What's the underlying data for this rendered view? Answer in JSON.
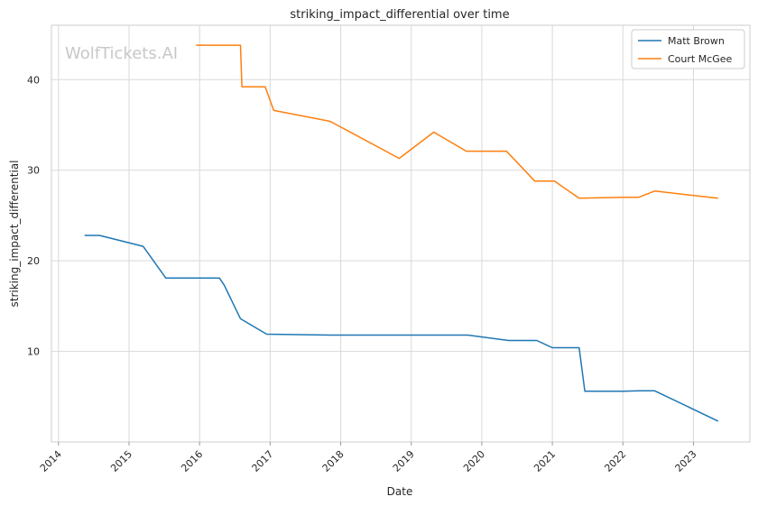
{
  "chart_data": {
    "type": "line",
    "title": "striking_impact_differential over time",
    "xlabel": "Date",
    "ylabel": "striking_impact_differential",
    "watermark": "WolfTickets.AI",
    "xlim": [
      2013.9,
      2023.8
    ],
    "ylim": [
      0,
      46
    ],
    "x_ticks": [
      2014,
      2015,
      2016,
      2017,
      2018,
      2019,
      2020,
      2021,
      2022,
      2023
    ],
    "x_tick_labels": [
      "2014",
      "2015",
      "2016",
      "2017",
      "2018",
      "2019",
      "2020",
      "2021",
      "2022",
      "2023"
    ],
    "y_ticks": [
      10,
      20,
      30,
      40
    ],
    "y_tick_labels": [
      "10",
      "20",
      "30",
      "40"
    ],
    "grid": true,
    "legend_position": "top-right",
    "series": [
      {
        "name": "Matt Brown",
        "color": "#1f77b4",
        "x": [
          2014.37,
          2014.58,
          2015.2,
          2015.52,
          2016.28,
          2016.35,
          2016.58,
          2016.95,
          2017.85,
          2018.5,
          2019.8,
          2020.38,
          2020.78,
          2021.0,
          2021.38,
          2021.46,
          2022.0,
          2022.25,
          2022.45,
          2023.35
        ],
        "y": [
          22.8,
          22.8,
          21.6,
          18.1,
          18.1,
          17.3,
          13.6,
          11.9,
          11.8,
          11.8,
          11.8,
          11.2,
          11.2,
          10.4,
          10.4,
          5.6,
          5.6,
          5.65,
          5.65,
          2.3
        ]
      },
      {
        "name": "Court McGee",
        "color": "#ff7f0e",
        "x": [
          2015.95,
          2016.58,
          2016.6,
          2016.93,
          2017.05,
          2017.85,
          2018.83,
          2019.32,
          2019.78,
          2020.35,
          2020.75,
          2021.03,
          2021.38,
          2022.0,
          2022.22,
          2022.45,
          2023.35
        ],
        "y": [
          43.8,
          43.8,
          39.2,
          39.2,
          36.6,
          35.4,
          31.3,
          34.2,
          32.1,
          32.1,
          28.8,
          28.8,
          26.9,
          27.0,
          27.0,
          27.7,
          26.9
        ]
      }
    ]
  }
}
